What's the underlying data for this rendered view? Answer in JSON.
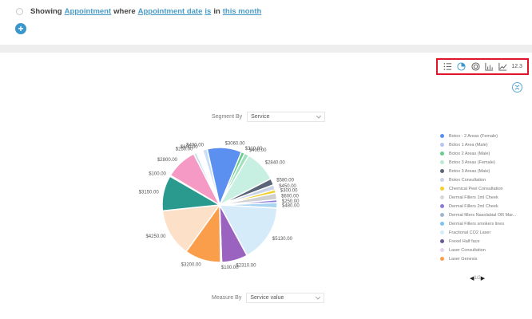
{
  "filter": {
    "showing": "Showing",
    "entity": "Appointment",
    "where": "where",
    "field": "Appointment date",
    "op": "is",
    "in": "in",
    "value": "this month"
  },
  "add_icon": "plus-icon",
  "toolbar": {
    "icons": [
      "list-icon",
      "pie-chart-icon",
      "donut-chart-icon",
      "bar-chart-icon",
      "line-chart-icon"
    ],
    "number_label": "12.3"
  },
  "segment": {
    "label": "Segment By",
    "value": "Service"
  },
  "measure": {
    "label": "Measure By",
    "value": "Service value"
  },
  "pager": {
    "text": "1/2"
  },
  "chart_data": {
    "type": "pie",
    "slices": [
      {
        "label": "$3060.00",
        "value": 3060,
        "color": "#5b8ff0"
      },
      {
        "label": "$310.00",
        "value": 310,
        "color": "#66cc88"
      },
      {
        "label": "$400.00",
        "value": 400,
        "color": "#9fe0bd"
      },
      {
        "label": "$2840.00",
        "value": 2840,
        "color": "#c8f0e2"
      },
      {
        "label": "$580.00",
        "value": 580,
        "color": "#5a6578"
      },
      {
        "label": "$450.00",
        "value": 450,
        "color": "#c9d4e6"
      },
      {
        "label": "$300.00",
        "value": 300,
        "color": "#f4cf2d"
      },
      {
        "label": "$600.00",
        "value": 600,
        "color": "#d0d0d0"
      },
      {
        "label": "$250.00",
        "value": 250,
        "color": "#8a7bd8"
      },
      {
        "label": "$480.00",
        "value": 480,
        "color": "#a9d6f0"
      },
      {
        "label": "$5130.00",
        "value": 5130,
        "color": "#d6ebfa"
      },
      {
        "label": "$2310.00",
        "value": 2310,
        "color": "#9b63c0"
      },
      {
        "label": "$100.00",
        "value": 100,
        "color": "#e6e6e6"
      },
      {
        "label": "$3200.00",
        "value": 3200,
        "color": "#fb9e4b"
      },
      {
        "label": "$4250.00",
        "value": 4250,
        "color": "#fde0c8"
      },
      {
        "label": "$3150.00",
        "value": 3150,
        "color": "#2a9a8f"
      },
      {
        "label": "$100.00",
        "value": 100,
        "color": "#f3b6c8"
      },
      {
        "label": "$2800.00",
        "value": 2800,
        "color": "#f59ac5"
      },
      {
        "label": "$250.00",
        "value": 250,
        "color": "#bfe0ef"
      },
      {
        "label": "$600.00",
        "value": 600,
        "color": "#ffffff"
      },
      {
        "label": "$400.00",
        "value": 400,
        "color": "#c9dff7"
      }
    ],
    "legend_position": "right"
  },
  "legend": {
    "items": [
      {
        "label": "Botox - 2 Areas (Female)",
        "color": "#5b8ff0"
      },
      {
        "label": "Botox 1 Area (Male)",
        "color": "#b6c6ee"
      },
      {
        "label": "Botox 2 Areas (Male)",
        "color": "#66cc88"
      },
      {
        "label": "Botox 3 Areas (Female)",
        "color": "#bfe8d4"
      },
      {
        "label": "Botox 3 Areas (Male)",
        "color": "#5a6578"
      },
      {
        "label": "Botox Consultation",
        "color": "#c9d4e6"
      },
      {
        "label": "Chemical Peel Consultation",
        "color": "#f4cf2d"
      },
      {
        "label": "Dermal Fillers 1ml Cheek",
        "color": "#d7d7d7"
      },
      {
        "label": "Dermal Fillers 2ml Cheek",
        "color": "#8a7bd8"
      },
      {
        "label": "Dermal fillers Nasolabial OR Mar...",
        "color": "#9fb3cc"
      },
      {
        "label": "Dermal Fillers smokers lines",
        "color": "#7ec4ea"
      },
      {
        "label": "Fractional CO2 Laser",
        "color": "#d6ebfa"
      },
      {
        "label": "Frexel Half face",
        "color": "#6a5a9a"
      },
      {
        "label": "Laser Consultation",
        "color": "#e3d4ef"
      },
      {
        "label": "Laser Genesis",
        "color": "#fb9e4b"
      }
    ]
  }
}
